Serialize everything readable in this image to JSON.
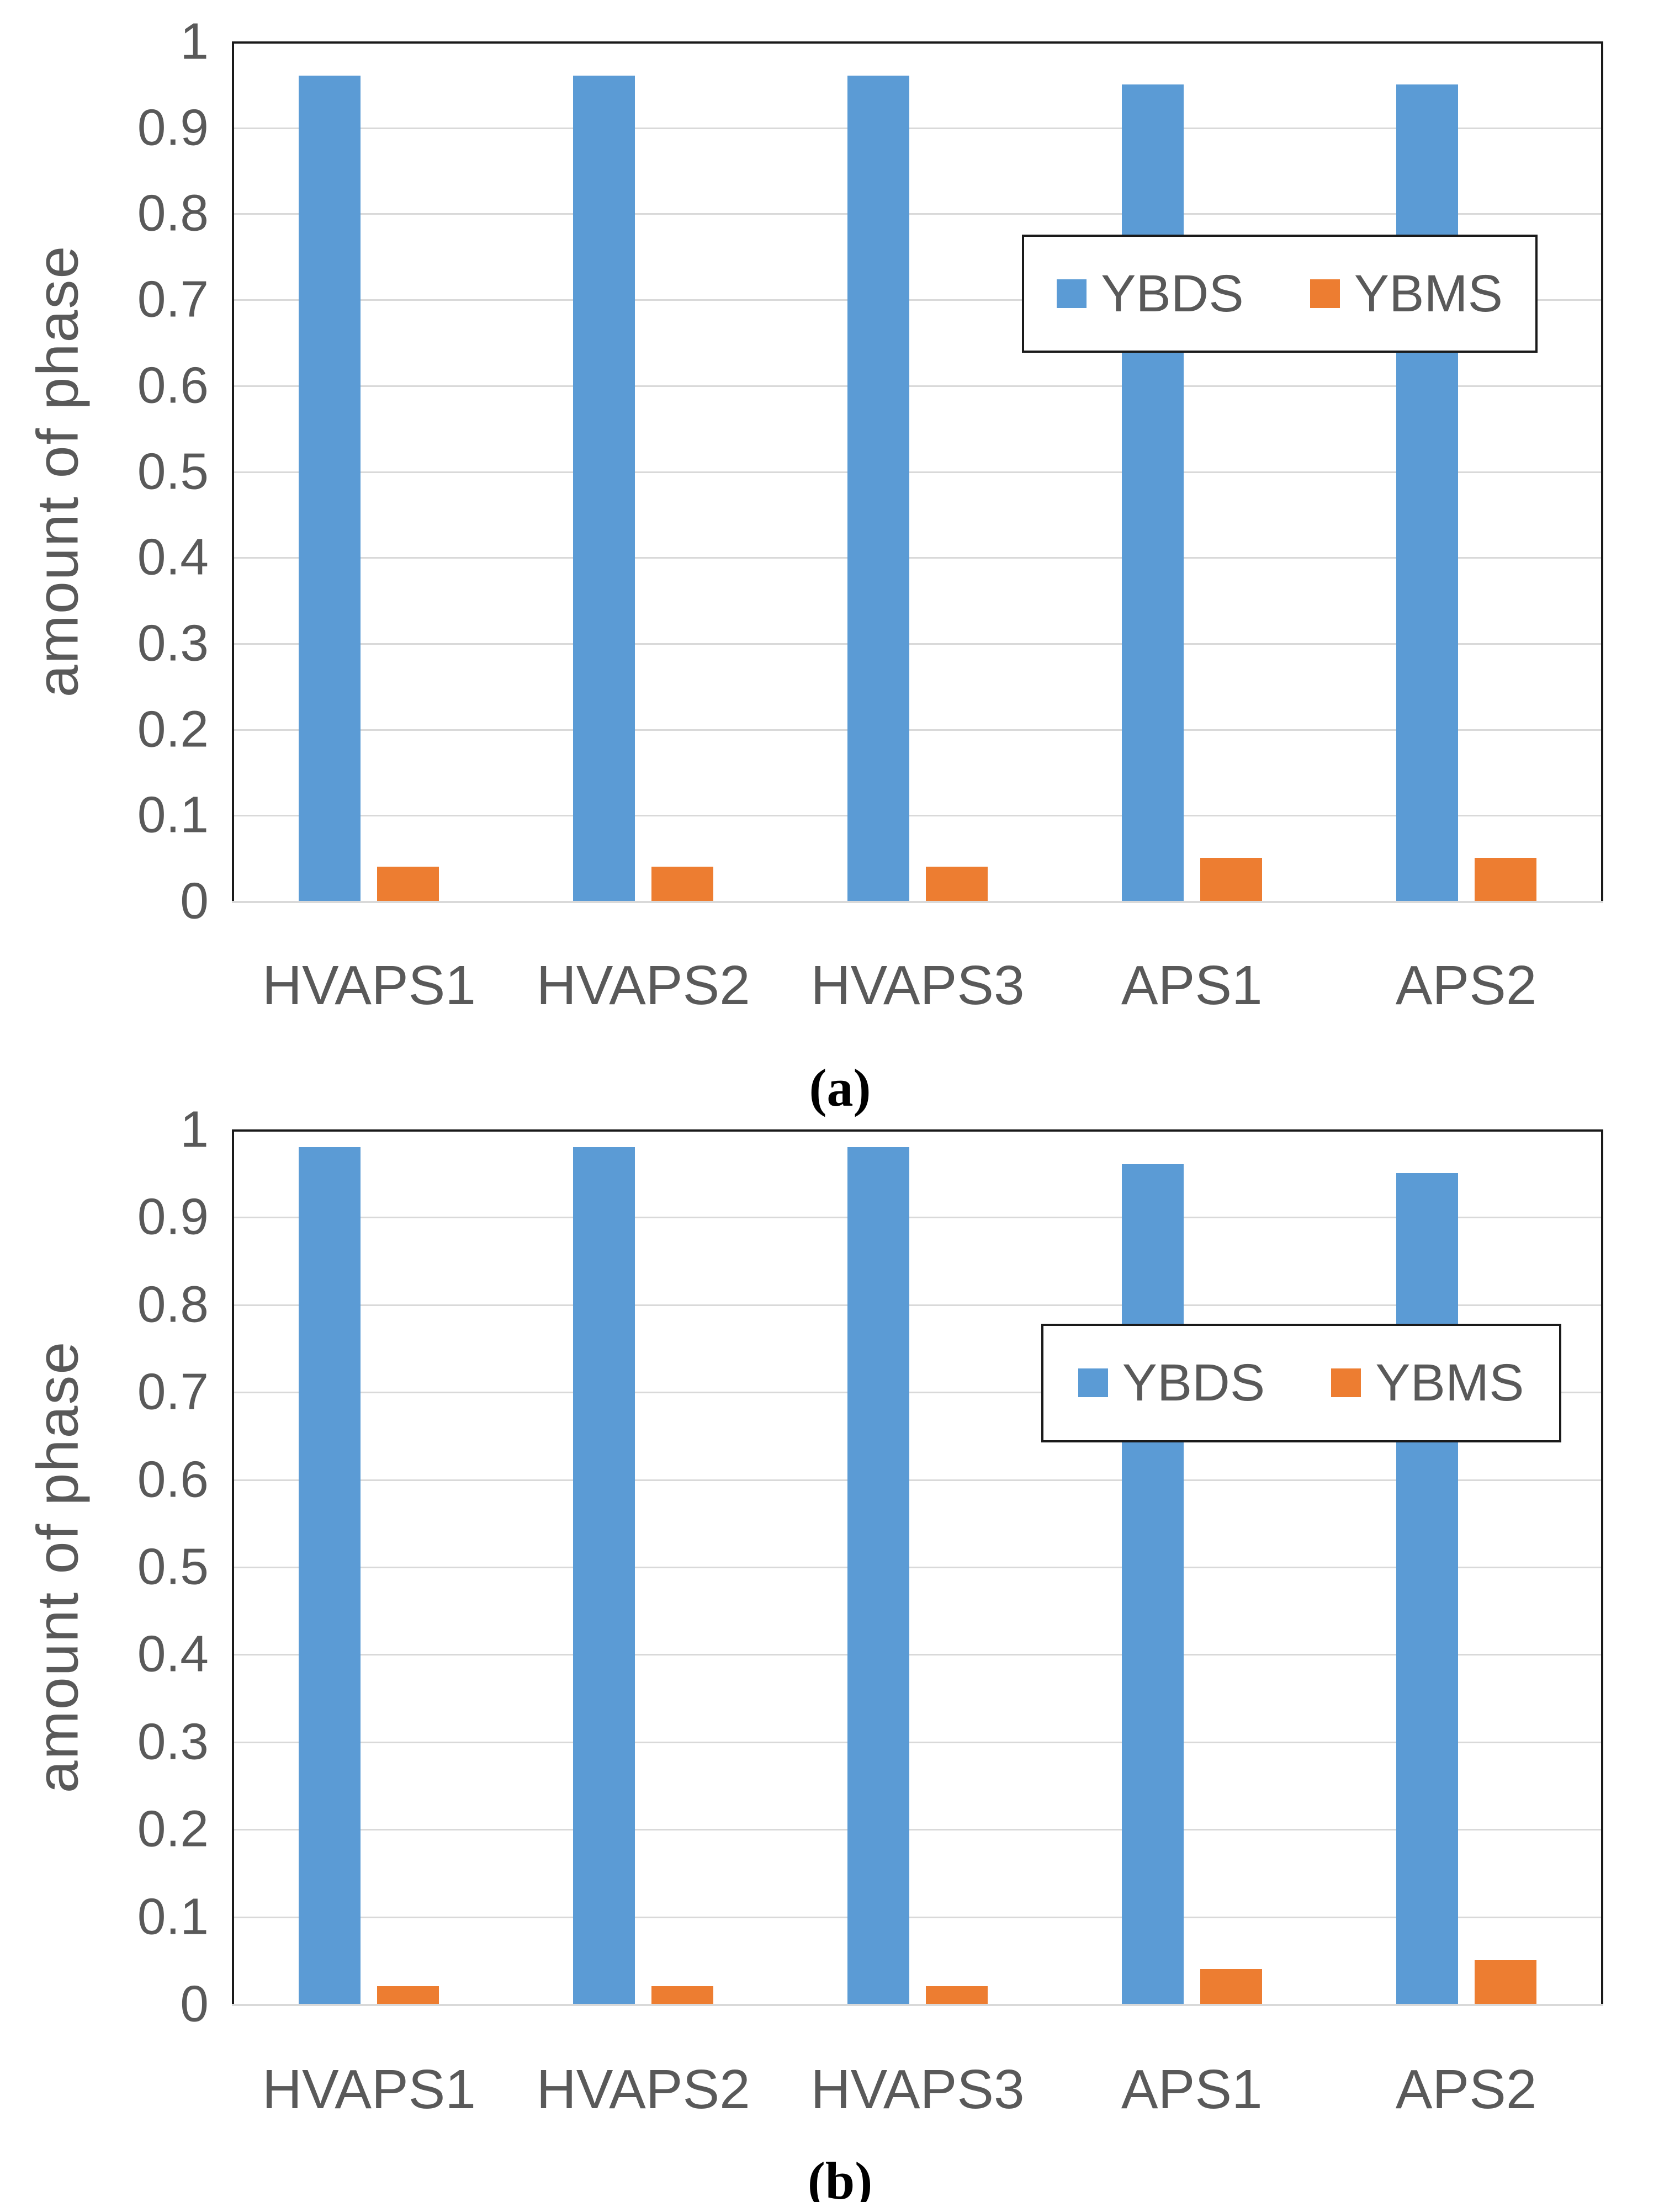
{
  "palette": {
    "series_blue": "#5B9BD5",
    "series_orange": "#ED7D31",
    "axis_text": "#595959",
    "gridline": "#D9D9D9",
    "plot_border": "#1A1A1A"
  },
  "chart_data": [
    {
      "type": "bar",
      "panel_label": "(a)",
      "title": "",
      "xlabel": "",
      "ylabel": "amount of phase",
      "categories": [
        "HVAPS1",
        "HVAPS2",
        "HVAPS3",
        "APS1",
        "APS2"
      ],
      "series": [
        {
          "name": "YBDS",
          "color": "#5B9BD5",
          "values": [
            0.96,
            0.96,
            0.96,
            0.95,
            0.95
          ]
        },
        {
          "name": "YBMS",
          "color": "#ED7D31",
          "values": [
            0.04,
            0.04,
            0.04,
            0.05,
            0.05
          ]
        }
      ],
      "ylim": [
        0,
        1
      ],
      "y_ticks": [
        "1",
        "0.9",
        "0.8",
        "0.7",
        "0.6",
        "0.5",
        "0.4",
        "0.3",
        "0.2",
        "0.1",
        "0"
      ],
      "grid": true,
      "legend_position": "inside-upper-right"
    },
    {
      "type": "bar",
      "panel_label": "(b)",
      "title": "",
      "xlabel": "",
      "ylabel": "amount of phase",
      "categories": [
        "HVAPS1",
        "HVAPS2",
        "HVAPS3",
        "APS1",
        "APS2"
      ],
      "series": [
        {
          "name": "YBDS",
          "color": "#5B9BD5",
          "values": [
            0.98,
            0.98,
            0.98,
            0.96,
            0.95
          ]
        },
        {
          "name": "YBMS",
          "color": "#ED7D31",
          "values": [
            0.02,
            0.02,
            0.02,
            0.04,
            0.05
          ]
        }
      ],
      "ylim": [
        0,
        1
      ],
      "y_ticks": [
        "1",
        "0.9",
        "0.8",
        "0.7",
        "0.6",
        "0.5",
        "0.4",
        "0.3",
        "0.2",
        "0.1",
        "0"
      ],
      "grid": true,
      "legend_position": "inside-upper-right"
    }
  ]
}
